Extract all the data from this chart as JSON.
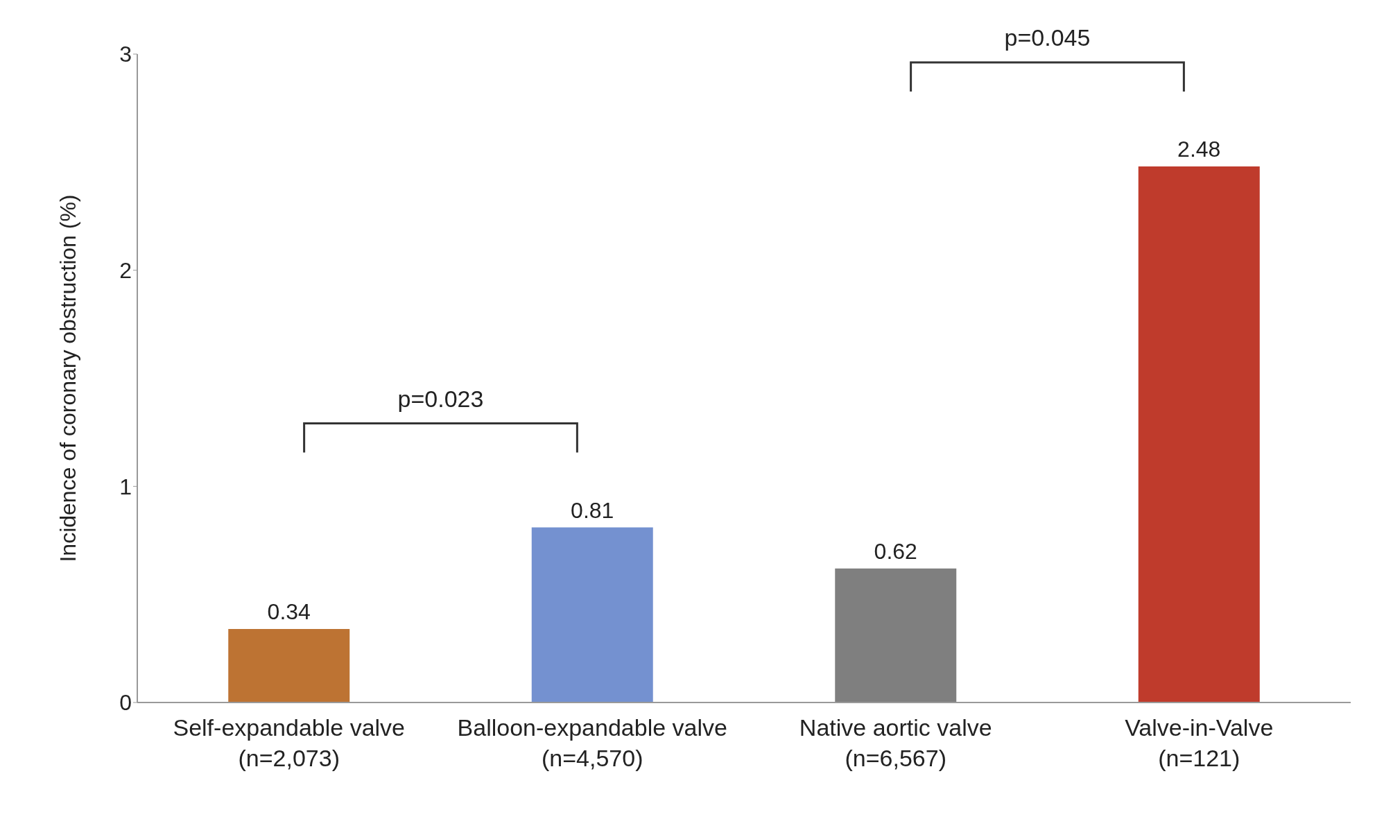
{
  "chart_data": {
    "type": "bar",
    "ylabel": "Incidence of coronary obstruction (%)",
    "categories": [
      "Self-expandable valve\n(n=2,073)",
      "Balloon-expandable valve\n(n=4,570)",
      "Native aortic valve\n(n=6,567)",
      "Valve-in-Valve\n(n=121)"
    ],
    "values": [
      0.34,
      0.81,
      0.62,
      2.48
    ],
    "colors": [
      "#bd7333",
      "#7491d0",
      "#7f7f7f",
      "#bf3b2c"
    ],
    "ylim": [
      0,
      3
    ],
    "yticks": [
      0,
      1,
      2,
      3
    ],
    "data_labels": true,
    "annotations": [
      "p=0.023",
      "p=0.045"
    ]
  }
}
